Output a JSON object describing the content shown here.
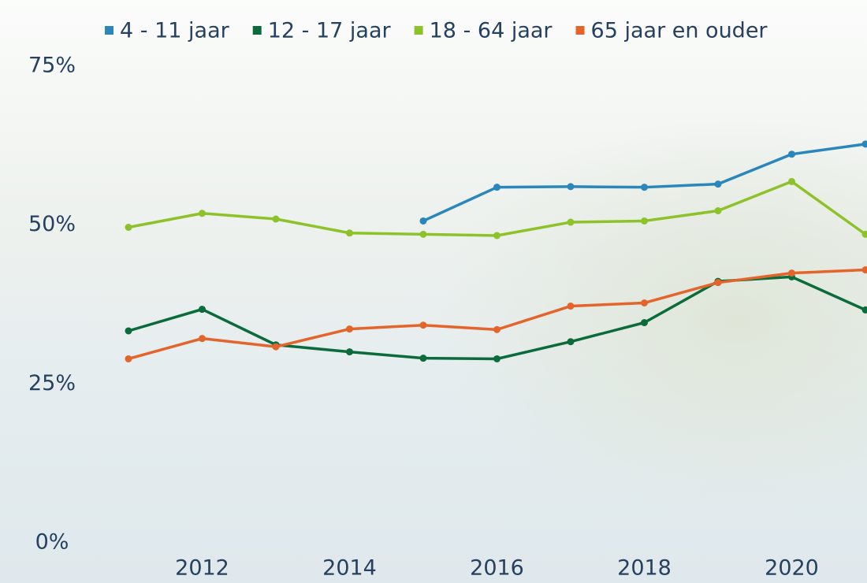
{
  "chart_data": {
    "type": "line",
    "x": [
      2011,
      2012,
      2013,
      2014,
      2015,
      2016,
      2017,
      2018,
      2019,
      2020,
      2021
    ],
    "xlim": [
      2011,
      2021
    ],
    "xticks": [
      2012,
      2014,
      2016,
      2018,
      2020
    ],
    "ylim": [
      0,
      75
    ],
    "yticks": [
      {
        "value": 0,
        "label": "0%"
      },
      {
        "value": 25,
        "label": "25%"
      },
      {
        "value": 50,
        "label": "50%"
      },
      {
        "value": 75,
        "label": "75%"
      }
    ],
    "grid": false,
    "legend": "top",
    "series": [
      {
        "name": "4 - 11 jaar",
        "color": "#2a86bb",
        "values": [
          null,
          null,
          null,
          null,
          50.4,
          55.7,
          55.8,
          55.7,
          56.2,
          60.9,
          62.5
        ]
      },
      {
        "name": "12 - 17 jaar",
        "color": "#0b6b3a",
        "values": [
          33.1,
          36.5,
          30.9,
          29.8,
          28.8,
          28.7,
          31.4,
          34.4,
          40.9,
          41.6,
          36.4
        ]
      },
      {
        "name": "18 - 64 jaar",
        "color": "#8dc22a",
        "values": [
          49.4,
          51.6,
          50.7,
          48.5,
          48.3,
          48.1,
          50.2,
          50.4,
          52.0,
          56.6,
          48.3
        ]
      },
      {
        "name": "65 jaar en ouder",
        "color": "#e3652b",
        "values": [
          28.7,
          31.9,
          30.6,
          33.4,
          34.0,
          33.3,
          37.0,
          37.5,
          40.7,
          42.2,
          42.7
        ]
      }
    ]
  }
}
